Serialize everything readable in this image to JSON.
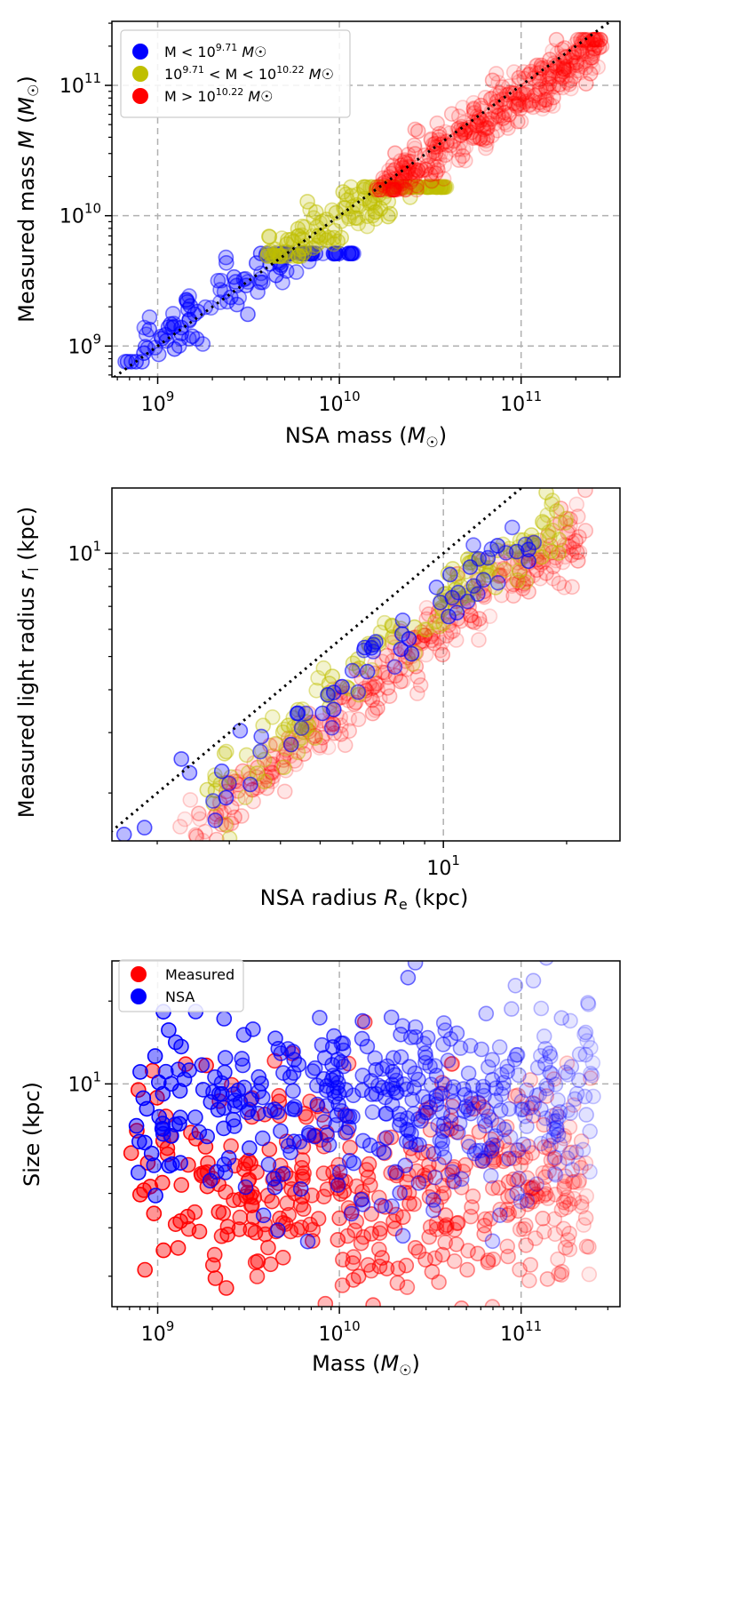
{
  "chart_data": [
    {
      "type": "scatter",
      "xlabel": "NSA mass (M☉)",
      "ylabel": "Measured mass M (M☉)",
      "xscale": "log",
      "yscale": "log",
      "xlim": [
        560000000.0,
        350000000000.0
      ],
      "ylim": [
        580000000.0,
        310000000000.0
      ],
      "xticks": [
        1000000000.0,
        10000000000.0,
        100000000000.0
      ],
      "xtick_labels": [
        [
          "10",
          "9"
        ],
        [
          "10",
          "10"
        ],
        [
          "10",
          "11"
        ]
      ],
      "yticks": [
        1000000000.0,
        10000000000.0,
        100000000000.0
      ],
      "ytick_labels": [
        [
          "10",
          "9"
        ],
        [
          "10",
          "10"
        ],
        [
          "10",
          "11"
        ]
      ],
      "grid": true,
      "reference_line": "y = x (dotted)",
      "legend_position": "top-left",
      "series": [
        {
          "name": "M < 10^9.71 M☉",
          "label_base": "M < 10",
          "label_exp": "9.71",
          "label_tail": " M☉",
          "color": "#0000ff",
          "x_log_range": [
            8.8,
            10.1
          ],
          "y_log_range": [
            8.9,
            9.71
          ],
          "count": 120,
          "alpha": 0.35
        },
        {
          "name": "10^9.71 < M < 10^10.22 M☉",
          "label_base": "10",
          "label_exp": "9.71",
          "label_mid": " < M < 10",
          "label_exp2": "10.22",
          "label_tail": " M☉",
          "color": "#bfbf00",
          "x_log_range": [
            9.6,
            10.6
          ],
          "y_log_range": [
            9.71,
            10.22
          ],
          "count": 160,
          "alpha": 0.3
        },
        {
          "name": "M > 10^10.22 M☉",
          "label_base": "M > 10",
          "label_exp": "10.22",
          "label_tail": " M☉",
          "color": "#ff0000",
          "x_log_range": [
            10.2,
            11.45
          ],
          "y_log_range": [
            10.22,
            11.35
          ],
          "count": 380,
          "alpha": 0.12
        }
      ]
    },
    {
      "type": "scatter",
      "xlabel": "NSA radius Re (kpc)",
      "ylabel": "Measured light radius rl (kpc)",
      "xscale": "log",
      "yscale": "log",
      "xlim": [
        1.55,
        27.0
      ],
      "ylim": [
        1.45,
        15.5
      ],
      "xticks": [
        10
      ],
      "xtick_labels": [
        [
          "10",
          "1"
        ]
      ],
      "yticks": [
        10
      ],
      "ytick_labels": [
        [
          "10",
          "1"
        ]
      ],
      "grid": true,
      "reference_line": "y = x (dotted)",
      "series": [
        {
          "name": "red",
          "color": "#ff0000",
          "x_log_range": [
            0.35,
            1.35
          ],
          "ratio": 0.62,
          "count": 300,
          "alpha": 0.12
        },
        {
          "name": "yellow",
          "color": "#bfbf00",
          "x_log_range": [
            0.42,
            1.3
          ],
          "ratio": 0.72,
          "count": 140,
          "alpha": 0.3
        },
        {
          "name": "blue",
          "color": "#0000ff",
          "x_log_range": [
            0.38,
            1.25
          ],
          "ratio": 0.73,
          "count": 60,
          "alpha": 0.4
        }
      ]
    },
    {
      "type": "scatter",
      "xlabel": "Mass (M☉)",
      "ylabel": "Size (kpc)",
      "xscale": "log",
      "yscale": "log",
      "xlim": [
        560000000.0,
        350000000000.0
      ],
      "ylim": [
        1.55,
        28
      ],
      "xticks": [
        1000000000.0,
        10000000000.0,
        100000000000.0
      ],
      "xtick_labels": [
        [
          "10",
          "9"
        ],
        [
          "10",
          "10"
        ],
        [
          "10",
          "11"
        ]
      ],
      "yticks": [
        10
      ],
      "ytick_labels": [
        [
          "10",
          "1"
        ]
      ],
      "grid": true,
      "legend_position": "top-left",
      "series": [
        {
          "name": "Measured",
          "color": "#ff0000",
          "x_log_range": [
            8.85,
            11.4
          ],
          "y_log_range": [
            0.25,
            0.98
          ],
          "count": 420
        },
        {
          "name": "NSA",
          "color": "#0000ff",
          "x_log_range": [
            8.85,
            11.4
          ],
          "y_log_range": [
            0.55,
            1.3
          ],
          "count": 420
        }
      ]
    }
  ]
}
